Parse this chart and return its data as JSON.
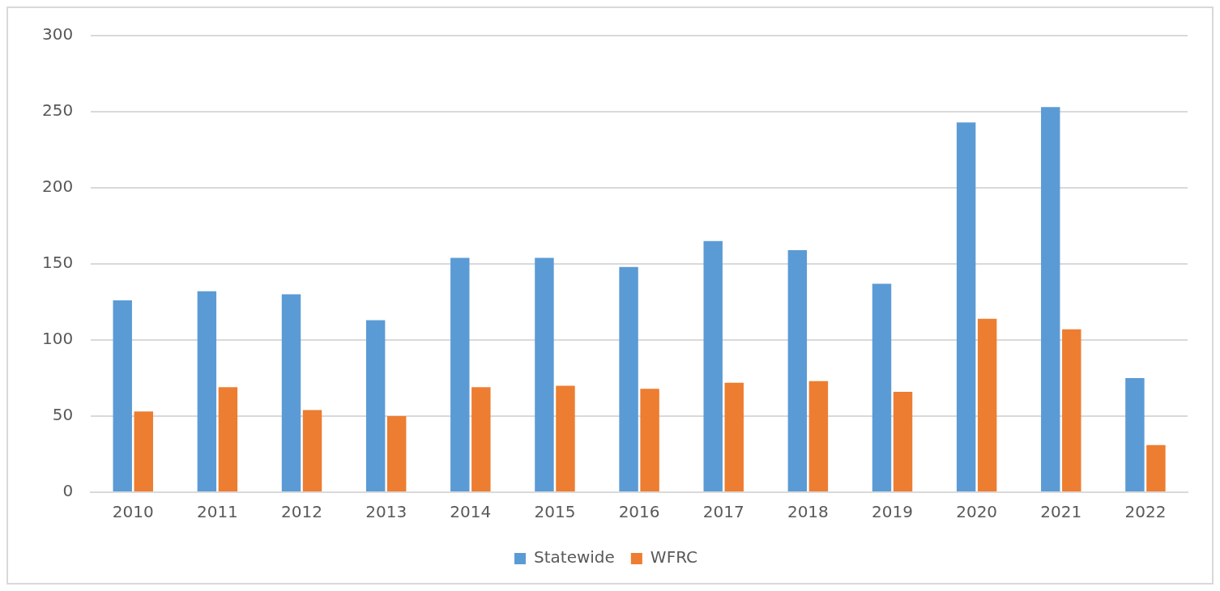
{
  "chart_data": {
    "type": "bar",
    "categories": [
      "2010",
      "2011",
      "2012",
      "2013",
      "2014",
      "2015",
      "2016",
      "2017",
      "2018",
      "2019",
      "2020",
      "2021",
      "2022"
    ],
    "series": [
      {
        "name": "Statewide",
        "color": "#5b9bd5",
        "values": [
          126,
          132,
          130,
          113,
          154,
          154,
          148,
          165,
          159,
          137,
          243,
          253,
          75
        ]
      },
      {
        "name": "WFRC",
        "color": "#ed7d31",
        "values": [
          53,
          69,
          54,
          50,
          69,
          70,
          68,
          72,
          73,
          66,
          114,
          107,
          31
        ]
      }
    ],
    "ylim": [
      0,
      300
    ],
    "yticks": [
      0,
      50,
      100,
      150,
      200,
      250,
      300
    ],
    "grid": "y",
    "legend": "bottom"
  }
}
